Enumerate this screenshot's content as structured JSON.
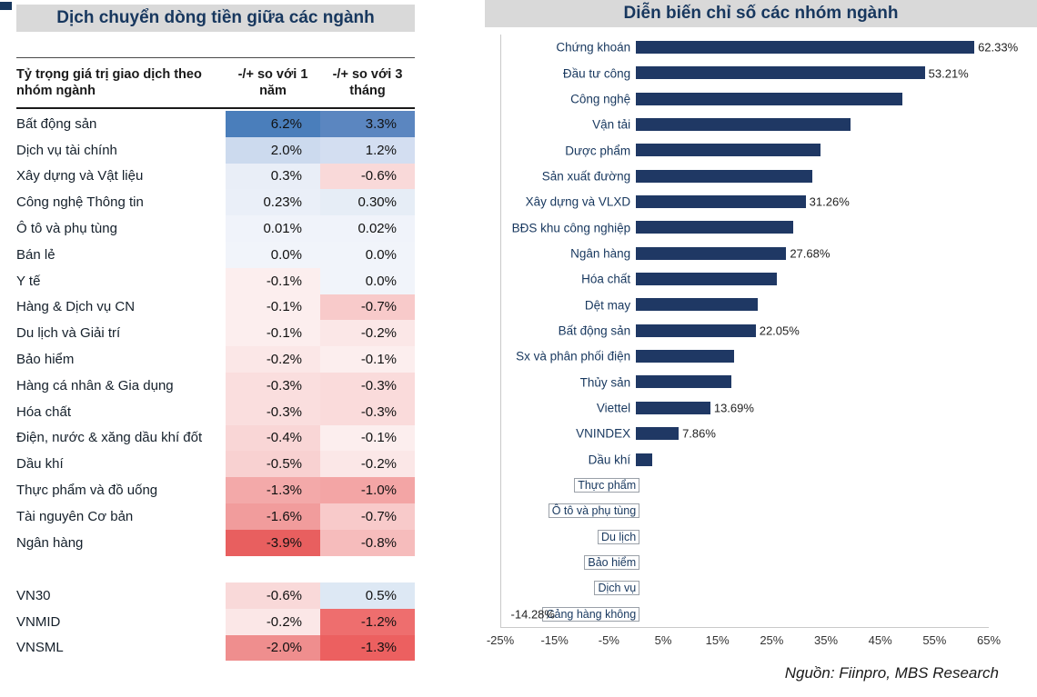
{
  "source": "Nguồn: Fiinpro, MBS Research",
  "chart_data": [
    {
      "type": "table",
      "subtype": "heatmap-table",
      "title": "Dịch chuyển dòng tiền giữa các ngành",
      "columns": [
        "Tỷ trọng giá trị giao dịch theo nhóm ngành",
        "-/+ so với 1 năm",
        "-/+ so với 3 tháng"
      ],
      "positive_color": "#4a7ebb",
      "negative_color": "#e85f5f",
      "rows": [
        {
          "name": "Bất động sản",
          "v1": "6.2%",
          "c1": "#4a7ebb",
          "v2": "3.3%",
          "c2": "#5b86c0"
        },
        {
          "name": "Dịch vụ tài chính",
          "v1": "2.0%",
          "c1": "#ccdaee",
          "v2": "1.2%",
          "c2": "#d3def1"
        },
        {
          "name": "Xây dựng và Vật liệu",
          "v1": "0.3%",
          "c1": "#e9eef7",
          "v2": "-0.6%",
          "c2": "#f9d9d9"
        },
        {
          "name": "Công nghệ Thông tin",
          "v1": "0.23%",
          "c1": "#eaeff8",
          "v2": "0.30%",
          "c2": "#e6edf6"
        },
        {
          "name": "Ô tô và phụ tùng",
          "v1": "0.01%",
          "c1": "#f0f3fa",
          "v2": "0.02%",
          "c2": "#f0f3fa"
        },
        {
          "name": "Bán lẻ",
          "v1": "0.0%",
          "c1": "#f1f4fa",
          "v2": "0.0%",
          "c2": "#f1f4fa"
        },
        {
          "name": "Y tế",
          "v1": "-0.1%",
          "c1": "#fceeee",
          "v2": "0.0%",
          "c2": "#f1f4fa"
        },
        {
          "name": "Hàng & Dịch vụ CN",
          "v1": "-0.1%",
          "c1": "#fceeee",
          "v2": "-0.7%",
          "c2": "#f8caca"
        },
        {
          "name": "Du lịch và Giải trí",
          "v1": "-0.1%",
          "c1": "#fceeee",
          "v2": "-0.2%",
          "c2": "#fbe7e7"
        },
        {
          "name": "Bảo hiểm",
          "v1": "-0.2%",
          "c1": "#fbe7e7",
          "v2": "-0.1%",
          "c2": "#fceeee"
        },
        {
          "name": "Hàng cá nhân & Gia dụng",
          "v1": "-0.3%",
          "c1": "#fadede",
          "v2": "-0.3%",
          "c2": "#fadbdb"
        },
        {
          "name": "Hóa chất",
          "v1": "-0.3%",
          "c1": "#fadede",
          "v2": "-0.3%",
          "c2": "#fadbdb"
        },
        {
          "name": "Điện, nước & xăng dầu khí đốt",
          "v1": "-0.4%",
          "c1": "#f9d6d6",
          "v2": "-0.1%",
          "c2": "#fceeee"
        },
        {
          "name": "Dầu khí",
          "v1": "-0.5%",
          "c1": "#f8d1d1",
          "v2": "-0.2%",
          "c2": "#fbe7e7"
        },
        {
          "name": "Thực phẩm và đồ uống",
          "v1": "-1.3%",
          "c1": "#f3a9a9",
          "v2": "-1.0%",
          "c2": "#f3a5a5"
        },
        {
          "name": "Tài nguyên Cơ bản",
          "v1": "-1.6%",
          "c1": "#f19c9c",
          "v2": "-0.7%",
          "c2": "#f8caca"
        },
        {
          "name": "Ngân hàng",
          "v1": "-3.9%",
          "c1": "#e85f5f",
          "v2": "-0.8%",
          "c2": "#f6bcbc"
        }
      ],
      "index_rows": [
        {
          "name": "VN30",
          "v1": "-0.6%",
          "c1": "#f9d9d9",
          "v2": "0.5%",
          "c2": "#dde8f4"
        },
        {
          "name": "VNMID",
          "v1": "-0.2%",
          "c1": "#fbe7e7",
          "v2": "-1.2%",
          "c2": "#ee6e6e"
        },
        {
          "name": "VNSML",
          "v1": "-2.0%",
          "c1": "#ef8e8e",
          "v2": "-1.3%",
          "c2": "#ec6060"
        }
      ]
    },
    {
      "type": "bar",
      "orientation": "horizontal",
      "title": "Diễn biến chỉ số các nhóm ngành",
      "bar_color": "#1f3864",
      "xlim": [
        -25,
        65
      ],
      "xtick_step": 10,
      "xtick_labels": [
        "-25%",
        "-15%",
        "-5%",
        "5%",
        "15%",
        "25%",
        "35%",
        "45%",
        "55%",
        "65%"
      ],
      "grid": false,
      "bars": [
        {
          "category": "Chứng khoán",
          "value": 62.33,
          "label": "62.33%"
        },
        {
          "category": "Đầu tư công",
          "value": 53.21,
          "label": "53.21%"
        },
        {
          "category": "Công nghệ",
          "value": 49
        },
        {
          "category": "Vận tải",
          "value": 39.5
        },
        {
          "category": "Dược phẩm",
          "value": 34
        },
        {
          "category": "Sản xuất đường",
          "value": 32.5
        },
        {
          "category": "Xây dựng và VLXD",
          "value": 31.26,
          "label": "31.26%"
        },
        {
          "category": "BĐS khu công nghiệp",
          "value": 29
        },
        {
          "category": "Ngân hàng",
          "value": 27.68,
          "label": "27.68%"
        },
        {
          "category": "Hóa chất",
          "value": 26
        },
        {
          "category": "Dệt may",
          "value": 22.5
        },
        {
          "category": "Bất động sản",
          "value": 22.05,
          "label": "22.05%"
        },
        {
          "category": "Sx và phân phối điện",
          "value": 18
        },
        {
          "category": "Thủy sản",
          "value": 17.5
        },
        {
          "category": "Viettel",
          "value": 13.69,
          "label": "13.69%"
        },
        {
          "category": "VNINDEX",
          "value": 7.86,
          "label": "7.86%"
        },
        {
          "category": "Dầu khí",
          "value": 3
        },
        {
          "category": "Thực phẩm",
          "value": -1
        },
        {
          "category": "Ô tô và phụ tùng",
          "value": -1.5
        },
        {
          "category": "Du lịch",
          "value": -2
        },
        {
          "category": "Bảo hiểm",
          "value": -2.5
        },
        {
          "category": "Dịch vụ",
          "value": -3
        },
        {
          "category": "Cảng hàng không",
          "value": -14.28,
          "label": "-14.28%"
        }
      ]
    }
  ]
}
